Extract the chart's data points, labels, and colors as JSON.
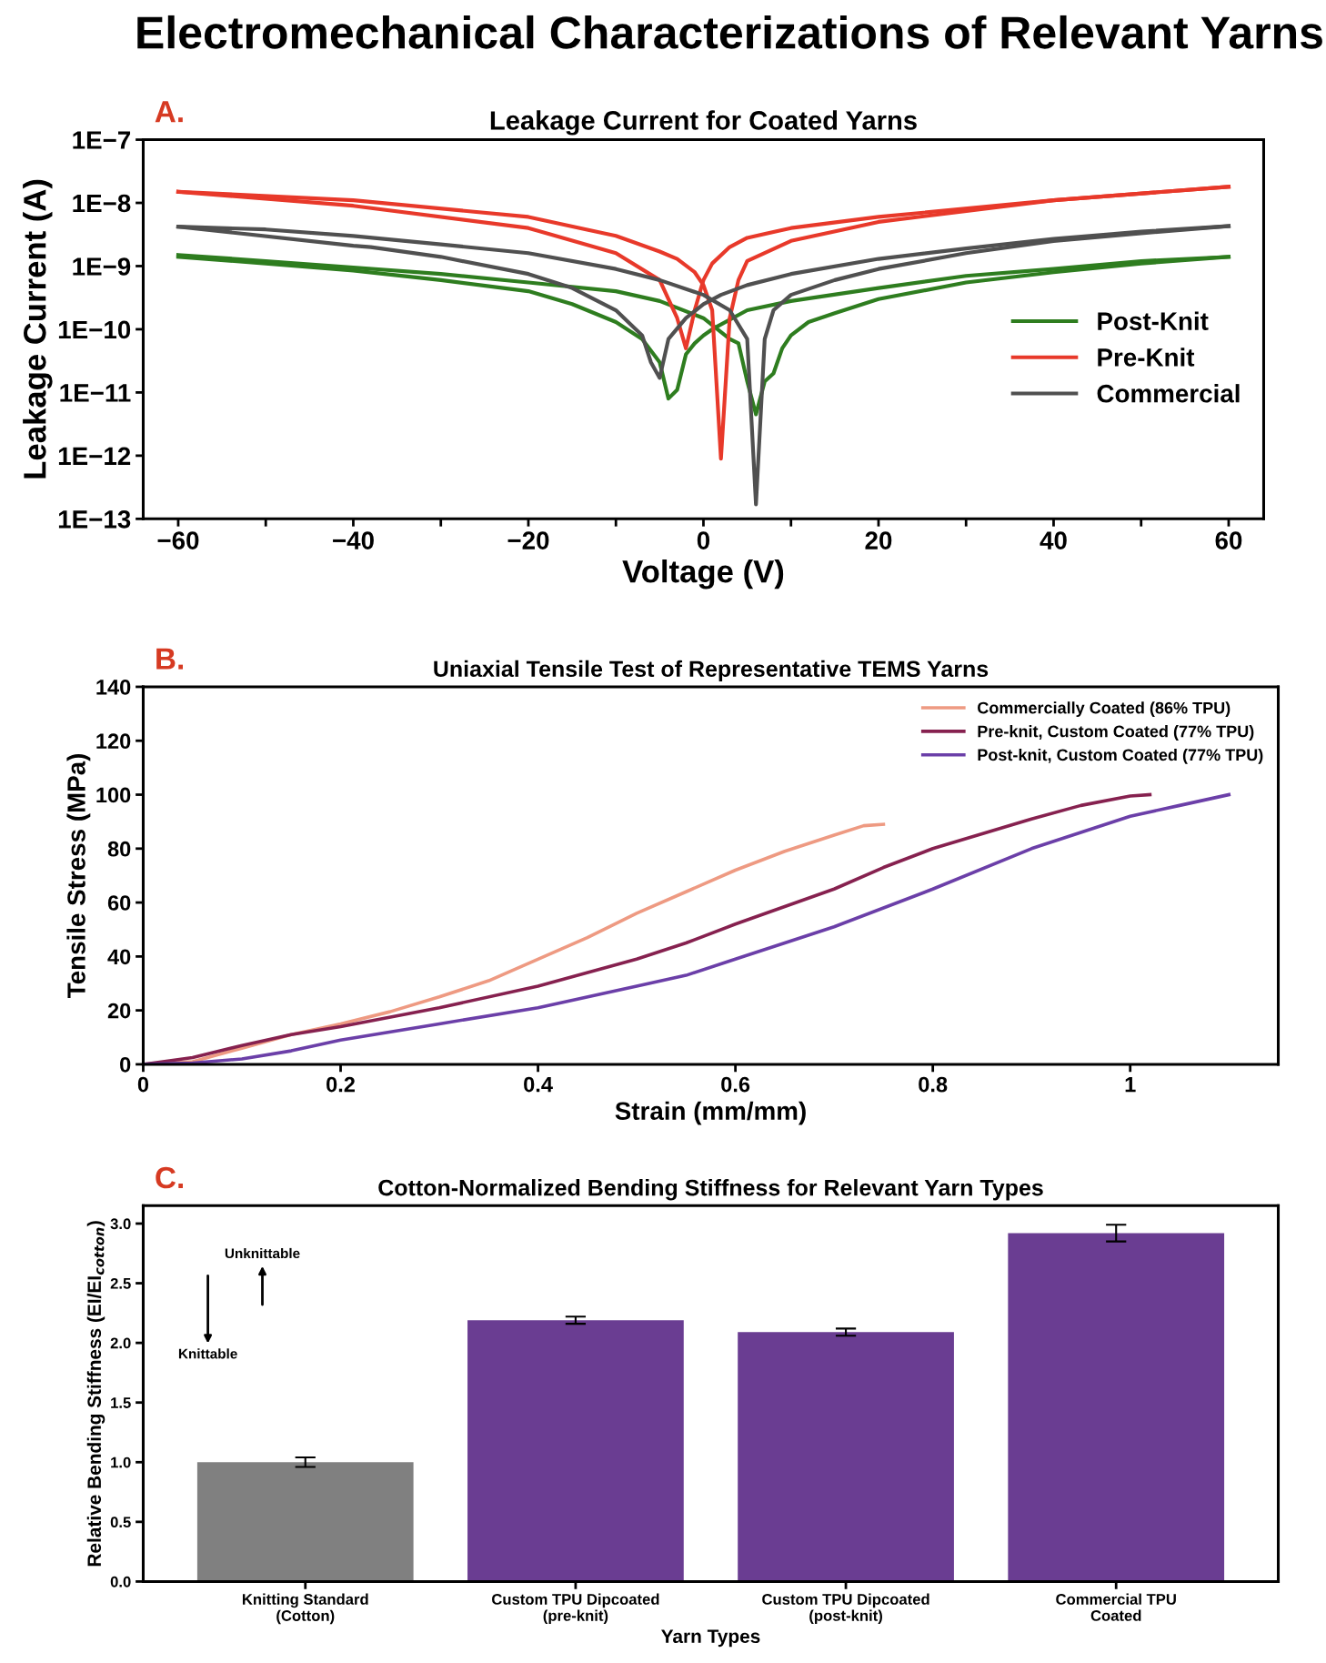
{
  "chart_data": [
    {
      "type": "line",
      "title": "Leakage Current for Coated Yarns",
      "xlabel": "Voltage (V)",
      "ylabel": "Leakage Current (A)",
      "annotations": [
        "Electromechanical Characterizations of Relevant Yarns",
        "A."
      ],
      "log": "y",
      "legend": "right",
      "marker": "none",
      "line_style": "solid",
      "grid": false,
      "xlim": [
        -64,
        64
      ],
      "ylim": [
        1e-13,
        1e-07
      ],
      "xticks": [
        {
          "value": -60,
          "label": "−60"
        },
        {
          "value": -50,
          "label": null
        },
        {
          "value": -40,
          "label": "−40"
        },
        {
          "value": -30,
          "label": null
        },
        {
          "value": -20,
          "label": "−20"
        },
        {
          "value": -10,
          "label": null
        },
        0,
        {
          "value": 10,
          "label": null
        },
        20,
        {
          "value": 30,
          "label": null
        },
        40,
        {
          "value": 50,
          "label": null
        },
        60
      ],
      "yticks": [
        {
          "value": 1e-13,
          "label": "1E−13"
        },
        {
          "value": 1e-12,
          "label": "1E−12"
        },
        {
          "value": 1e-11,
          "label": "1E−11"
        },
        {
          "value": 1e-10,
          "label": "1E−10"
        },
        {
          "value": 1e-09,
          "label": "1E−9"
        },
        {
          "value": 1e-08,
          "label": "1E−8"
        },
        {
          "value": 1e-07,
          "label": "1E−7"
        }
      ],
      "series": [
        {
          "name": "Post-Knit",
          "color": "#2e7d1f",
          "x": [
            -60,
            -50,
            -40,
            -30,
            -20,
            -15,
            -10,
            -7,
            -5,
            -4,
            -3,
            -2,
            -1,
            0,
            1,
            5,
            10,
            20,
            30,
            40,
            50,
            60
          ],
          "values": [
            1.4e-09,
            1.1e-09,
            8.5e-10,
            6e-10,
            4e-10,
            2.5e-10,
            1.3e-10,
            7e-11,
            3e-11,
            8e-12,
            1.1e-11,
            4e-11,
            6e-11,
            8e-11,
            1e-10,
            2e-10,
            2.8e-10,
            4.5e-10,
            7e-10,
            9e-10,
            1.2e-09,
            1.4e-09
          ]
        },
        {
          "color": "#2e7d1f",
          "x": [
            -60,
            -50,
            -40,
            -30,
            -20,
            -10,
            -5,
            0,
            3,
            4,
            5,
            6,
            7,
            8,
            9,
            10,
            12,
            15,
            20,
            30,
            40,
            50,
            60
          ],
          "values": [
            1.5e-09,
            1.2e-09,
            9.5e-10,
            7.5e-10,
            5.5e-10,
            4e-10,
            2.8e-10,
            1.5e-10,
            7e-11,
            6e-11,
            1.5e-11,
            4.5e-12,
            1.5e-11,
            2e-11,
            5e-11,
            8e-11,
            1.3e-10,
            1.8e-10,
            3e-10,
            5.5e-10,
            8e-10,
            1.1e-09,
            1.4e-09
          ]
        },
        {
          "name": "Pre-Knit",
          "color": "#e8392a",
          "x": [
            -60,
            -40,
            -20,
            -10,
            -5,
            -3,
            -2,
            -1,
            0,
            1,
            3,
            5,
            10,
            20,
            40,
            60
          ],
          "values": [
            1.5e-08,
            9e-09,
            4e-09,
            1.6e-09,
            6e-10,
            1.5e-10,
            5e-11,
            2e-10,
            6e-10,
            1.1e-09,
            2e-09,
            2.8e-09,
            4e-09,
            6e-09,
            1.1e-08,
            1.8e-08
          ]
        },
        {
          "color": "#e8392a",
          "x": [
            -60,
            -40,
            -20,
            -10,
            -5,
            -3,
            -1,
            0,
            1,
            2,
            3,
            4,
            5,
            10,
            20,
            40,
            60
          ],
          "values": [
            1.5e-08,
            1.1e-08,
            6e-09,
            3e-09,
            1.7e-09,
            1.3e-09,
            8e-10,
            5e-10,
            2e-10,
            9e-13,
            1.5e-10,
            6e-10,
            1.2e-09,
            2.5e-09,
            5e-09,
            1.1e-08,
            1.8e-08
          ]
        },
        {
          "name": "Commercial",
          "color": "#505050",
          "x": [
            -60,
            -40,
            -38,
            -30,
            -20,
            -15,
            -10,
            -7,
            -6,
            -5,
            -4,
            -2,
            0,
            2,
            5,
            10,
            20,
            30,
            40,
            50,
            60
          ],
          "values": [
            4.2e-09,
            2.1e-09,
            2e-09,
            1.4e-09,
            7.5e-10,
            4.5e-10,
            2e-10,
            8e-11,
            3e-11,
            1.7e-11,
            7e-11,
            1.5e-10,
            2.5e-10,
            3.5e-10,
            5e-10,
            7.5e-10,
            1.3e-09,
            1.9e-09,
            2.7e-09,
            3.5e-09,
            4.3e-09
          ]
        },
        {
          "color": "#505050",
          "x": [
            -60,
            -50,
            -40,
            -30,
            -20,
            -10,
            -5,
            0,
            3,
            5,
            6,
            7,
            8,
            10,
            15,
            20,
            30,
            40,
            50,
            60
          ],
          "values": [
            4.2e-09,
            3.8e-09,
            3e-09,
            2.2e-09,
            1.6e-09,
            9e-10,
            6e-10,
            3.5e-10,
            2e-10,
            7e-11,
            1.7e-13,
            7e-11,
            2e-10,
            3.5e-10,
            6e-10,
            9e-10,
            1.6e-09,
            2.5e-09,
            3.3e-09,
            4.3e-09
          ]
        }
      ]
    },
    {
      "type": "line",
      "title": "Uniaxial Tensile Test of Representative TEMS Yarns",
      "xlabel": "Strain (mm/mm)",
      "ylabel": "Tensile Stress (MPa)",
      "annotations": [
        "B."
      ],
      "legend": "top right",
      "marker": "none",
      "line_style": "solid",
      "grid": false,
      "xlim": [
        0,
        1.15
      ],
      "ylim": [
        0,
        140
      ],
      "xticks": [
        0,
        0.2,
        0.4,
        0.6,
        0.8,
        1
      ],
      "yticks": [
        0,
        20,
        40,
        60,
        80,
        100,
        120,
        140
      ],
      "series": [
        {
          "name": "Commercially Coated (86% TPU)",
          "color": "#ee9a82",
          "x": [
            0,
            0.05,
            0.1,
            0.15,
            0.2,
            0.25,
            0.3,
            0.35,
            0.4,
            0.45,
            0.5,
            0.55,
            0.6,
            0.65,
            0.7,
            0.73,
            0.75
          ],
          "values": [
            0,
            1,
            6,
            11,
            15,
            19.5,
            25,
            31,
            39,
            47,
            56,
            64,
            72,
            79,
            85,
            88.5,
            89
          ]
        },
        {
          "name": "Pre-knit, Custom Coated (77% TPU)",
          "color": "#86214f",
          "x": [
            0,
            0.05,
            0.1,
            0.15,
            0.2,
            0.3,
            0.4,
            0.5,
            0.55,
            0.6,
            0.7,
            0.75,
            0.8,
            0.9,
            0.95,
            1.0,
            1.02
          ],
          "values": [
            0,
            2.5,
            7,
            11,
            14,
            21,
            29,
            39,
            45,
            52,
            65,
            73,
            80,
            91,
            96,
            99.5,
            100
          ]
        },
        {
          "name": "Post-knit, Custom Coated (77% TPU)",
          "color": "#6b3fa8",
          "x": [
            0,
            0.05,
            0.1,
            0.15,
            0.2,
            0.3,
            0.4,
            0.5,
            0.55,
            0.6,
            0.7,
            0.8,
            0.9,
            1.0,
            1.05,
            1.1
          ],
          "values": [
            0,
            0.5,
            2,
            5,
            9,
            15,
            21,
            29,
            33,
            39,
            51,
            65,
            80,
            92,
            96,
            100
          ]
        }
      ]
    },
    {
      "type": "bar",
      "title": "Cotton-Normalized Bending Stiffness for Relevant Yarn Types",
      "xlabel": "Yarn Types",
      "ylabel": "Relative Bending Stiffness (EI/EI$_{cotton}$)",
      "annotations": [
        "C.",
        "Unknittable",
        "Knittable"
      ],
      "legend": false,
      "grid": false,
      "categories": [
        "Knitting Standard\n(Cotton)",
        "Custom TPU Dipcoated\n(pre-knit)",
        "Custom TPU Dipcoated\n(post-knit)",
        "Commercial TPU\nCoated"
      ],
      "values": [
        1.0,
        2.19,
        2.09,
        2.92
      ],
      "errors": [
        0.04,
        0.03,
        0.03,
        0.07
      ],
      "colors": [
        "#808080",
        "#6a3d92",
        "#6a3d92",
        "#6a3d92"
      ],
      "ylim": [
        0,
        3.15
      ],
      "yticks": [
        {
          "value": 0,
          "label": "0.0"
        },
        0.5,
        {
          "value": 1,
          "label": "1.0"
        },
        1.5,
        {
          "value": 2,
          "label": "2.0"
        },
        2.5,
        {
          "value": 3,
          "label": "3.0"
        }
      ]
    }
  ]
}
